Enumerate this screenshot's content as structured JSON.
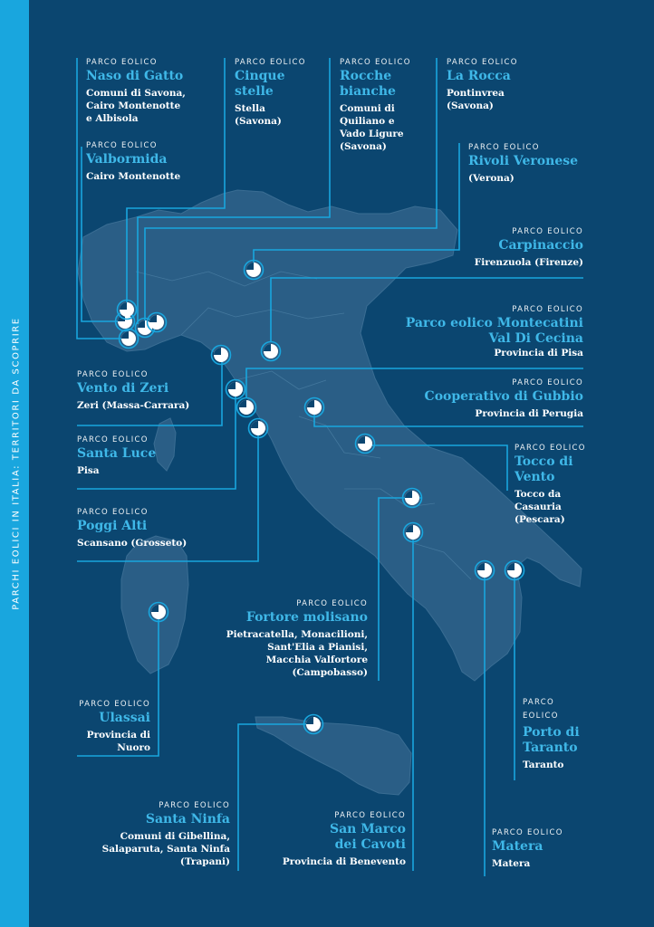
{
  "sidebar": {
    "label": "PARCHI EOLICI IN ITALIA: TERRITORI DA SCOPRIRE"
  },
  "colors": {
    "background": "#0b4670",
    "map": "#2a5e86",
    "accent": "#19a6de",
    "name": "#3fb8e8",
    "text": "#ffffff"
  },
  "map": {
    "marker_icon": "half-pie-marker-icon"
  },
  "parks": [
    {
      "id": "naso-di-gatto",
      "kicker": "PARCO EOLICO",
      "name": "Naso di Gatto",
      "location": "Comuni di Savona,\nCairo Montenotte\ne Albisola"
    },
    {
      "id": "valbormida",
      "kicker": "PARCO EOLICO",
      "name": "Valbormida",
      "location": "Cairo Montenotte"
    },
    {
      "id": "cinque-stelle",
      "kicker": "PARCO EOLICO",
      "name": "Cinque\nstelle",
      "location": "Stella\n(Savona)"
    },
    {
      "id": "rocche-bianche",
      "kicker": "PARCO EOLICO",
      "name": "Rocche\nbianche",
      "location": "Comuni di\nQuiliano e\nVado Ligure\n(Savona)"
    },
    {
      "id": "la-rocca",
      "kicker": "PARCO EOLICO",
      "name": "La Rocca",
      "location": "Pontinvrea\n(Savona)"
    },
    {
      "id": "rivoli-veronese",
      "kicker": "PARCO EOLICO",
      "name": "Rivoli Veronese",
      "location": "(Verona)"
    },
    {
      "id": "carpinaccio",
      "kicker": "PARCO EOLICO",
      "name": "Carpinaccio",
      "location": "Firenzuola (Firenze)"
    },
    {
      "id": "montecatini",
      "kicker": "PARCO EOLICO",
      "name": "Parco eolico Montecatini\nVal Di Cecina",
      "location": "Provincia di Pisa"
    },
    {
      "id": "vento-di-zeri",
      "kicker": "PARCO EOLICO",
      "name": "Vento di Zeri",
      "location": "Zeri (Massa-Carrara)"
    },
    {
      "id": "gubbio",
      "kicker": "PARCO EOLICO",
      "name": "Cooperativo di Gubbio",
      "location": "Provincia di Perugia"
    },
    {
      "id": "santa-luce",
      "kicker": "PARCO EOLICO",
      "name": "Santa Luce",
      "location": "Pisa"
    },
    {
      "id": "tocco-di-vento",
      "kicker": "PARCO EOLICO",
      "name": "Tocco di\nVento",
      "location": "Tocco da\nCasauria\n(Pescara)"
    },
    {
      "id": "poggi-alti",
      "kicker": "PARCO EOLICO",
      "name": "Poggi Alti",
      "location": "Scansano (Grosseto)"
    },
    {
      "id": "fortore-molisano",
      "kicker": "PARCO EOLICO",
      "name": "Fortore molisano",
      "location": "Pietracatella, Monacilioni,\nSant'Elia a Pianisi,\nMacchia Valfortore\n(Campobasso)"
    },
    {
      "id": "ulassai",
      "kicker": "PARCO EOLICO",
      "name": "Ulassai",
      "location": "Provincia di\nNuoro"
    },
    {
      "id": "porto-di-taranto",
      "kicker": "PARCO\nEOLICO",
      "name": "Porto di\nTaranto",
      "location": "Taranto"
    },
    {
      "id": "santa-ninfa",
      "kicker": "PARCO EOLICO",
      "name": "Santa Ninfa",
      "location": "Comuni di Gibellina,\nSalaparuta, Santa Ninfa\n(Trapani)"
    },
    {
      "id": "san-marco-dei-cavoti",
      "kicker": "PARCO EOLICO",
      "name": "San Marco\ndei Cavoti",
      "location": "Provincia di Benevento"
    },
    {
      "id": "matera",
      "kicker": "PARCO EOLICO",
      "name": "Matera",
      "location": "Matera"
    }
  ]
}
